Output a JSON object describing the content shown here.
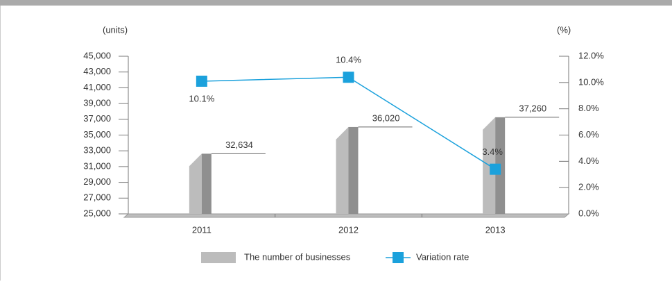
{
  "chart_data": {
    "type": "bar-line",
    "y_label": "(units)",
    "y2_label": "(%)",
    "categories": [
      "2011",
      "2012",
      "2013"
    ],
    "series": [
      {
        "name": "The number of businesses",
        "type": "bar",
        "color": "#a9a9a9",
        "values": [
          32634,
          36020,
          37260
        ],
        "value_labels": [
          "32,634",
          "36,020",
          "37,260"
        ]
      },
      {
        "name": "Variation rate",
        "type": "line",
        "axis": "y2",
        "color": "#1ba1dc",
        "values": [
          10.1,
          10.4,
          3.4
        ],
        "value_labels": [
          "10.1%",
          "10.4%",
          "3.4%"
        ]
      }
    ],
    "ylim": [
      25000,
      45000
    ],
    "yticks": [
      {
        "value": 25000,
        "label": "25,000"
      },
      {
        "value": 27000,
        "label": "27,000"
      },
      {
        "value": 29000,
        "label": "29,000"
      },
      {
        "value": 31000,
        "label": "31,000"
      },
      {
        "value": 33000,
        "label": "33,000"
      },
      {
        "value": 35000,
        "label": "35,000"
      },
      {
        "value": 37000,
        "label": "37,000"
      },
      {
        "value": 39000,
        "label": "39,000"
      },
      {
        "value": 41000,
        "label": "41,000"
      },
      {
        "value": 43000,
        "label": "43,000"
      },
      {
        "value": 45000,
        "label": "45,000"
      }
    ],
    "y2lim": [
      0,
      12
    ],
    "y2ticks": [
      {
        "value": 0,
        "label": "0.0%"
      },
      {
        "value": 2,
        "label": "2.0%"
      },
      {
        "value": 4,
        "label": "4.0%"
      },
      {
        "value": 6,
        "label": "6.0%"
      },
      {
        "value": 8,
        "label": "8.0%"
      },
      {
        "value": 10,
        "label": "10.0%"
      },
      {
        "value": 12,
        "label": "12.0%"
      }
    ]
  }
}
